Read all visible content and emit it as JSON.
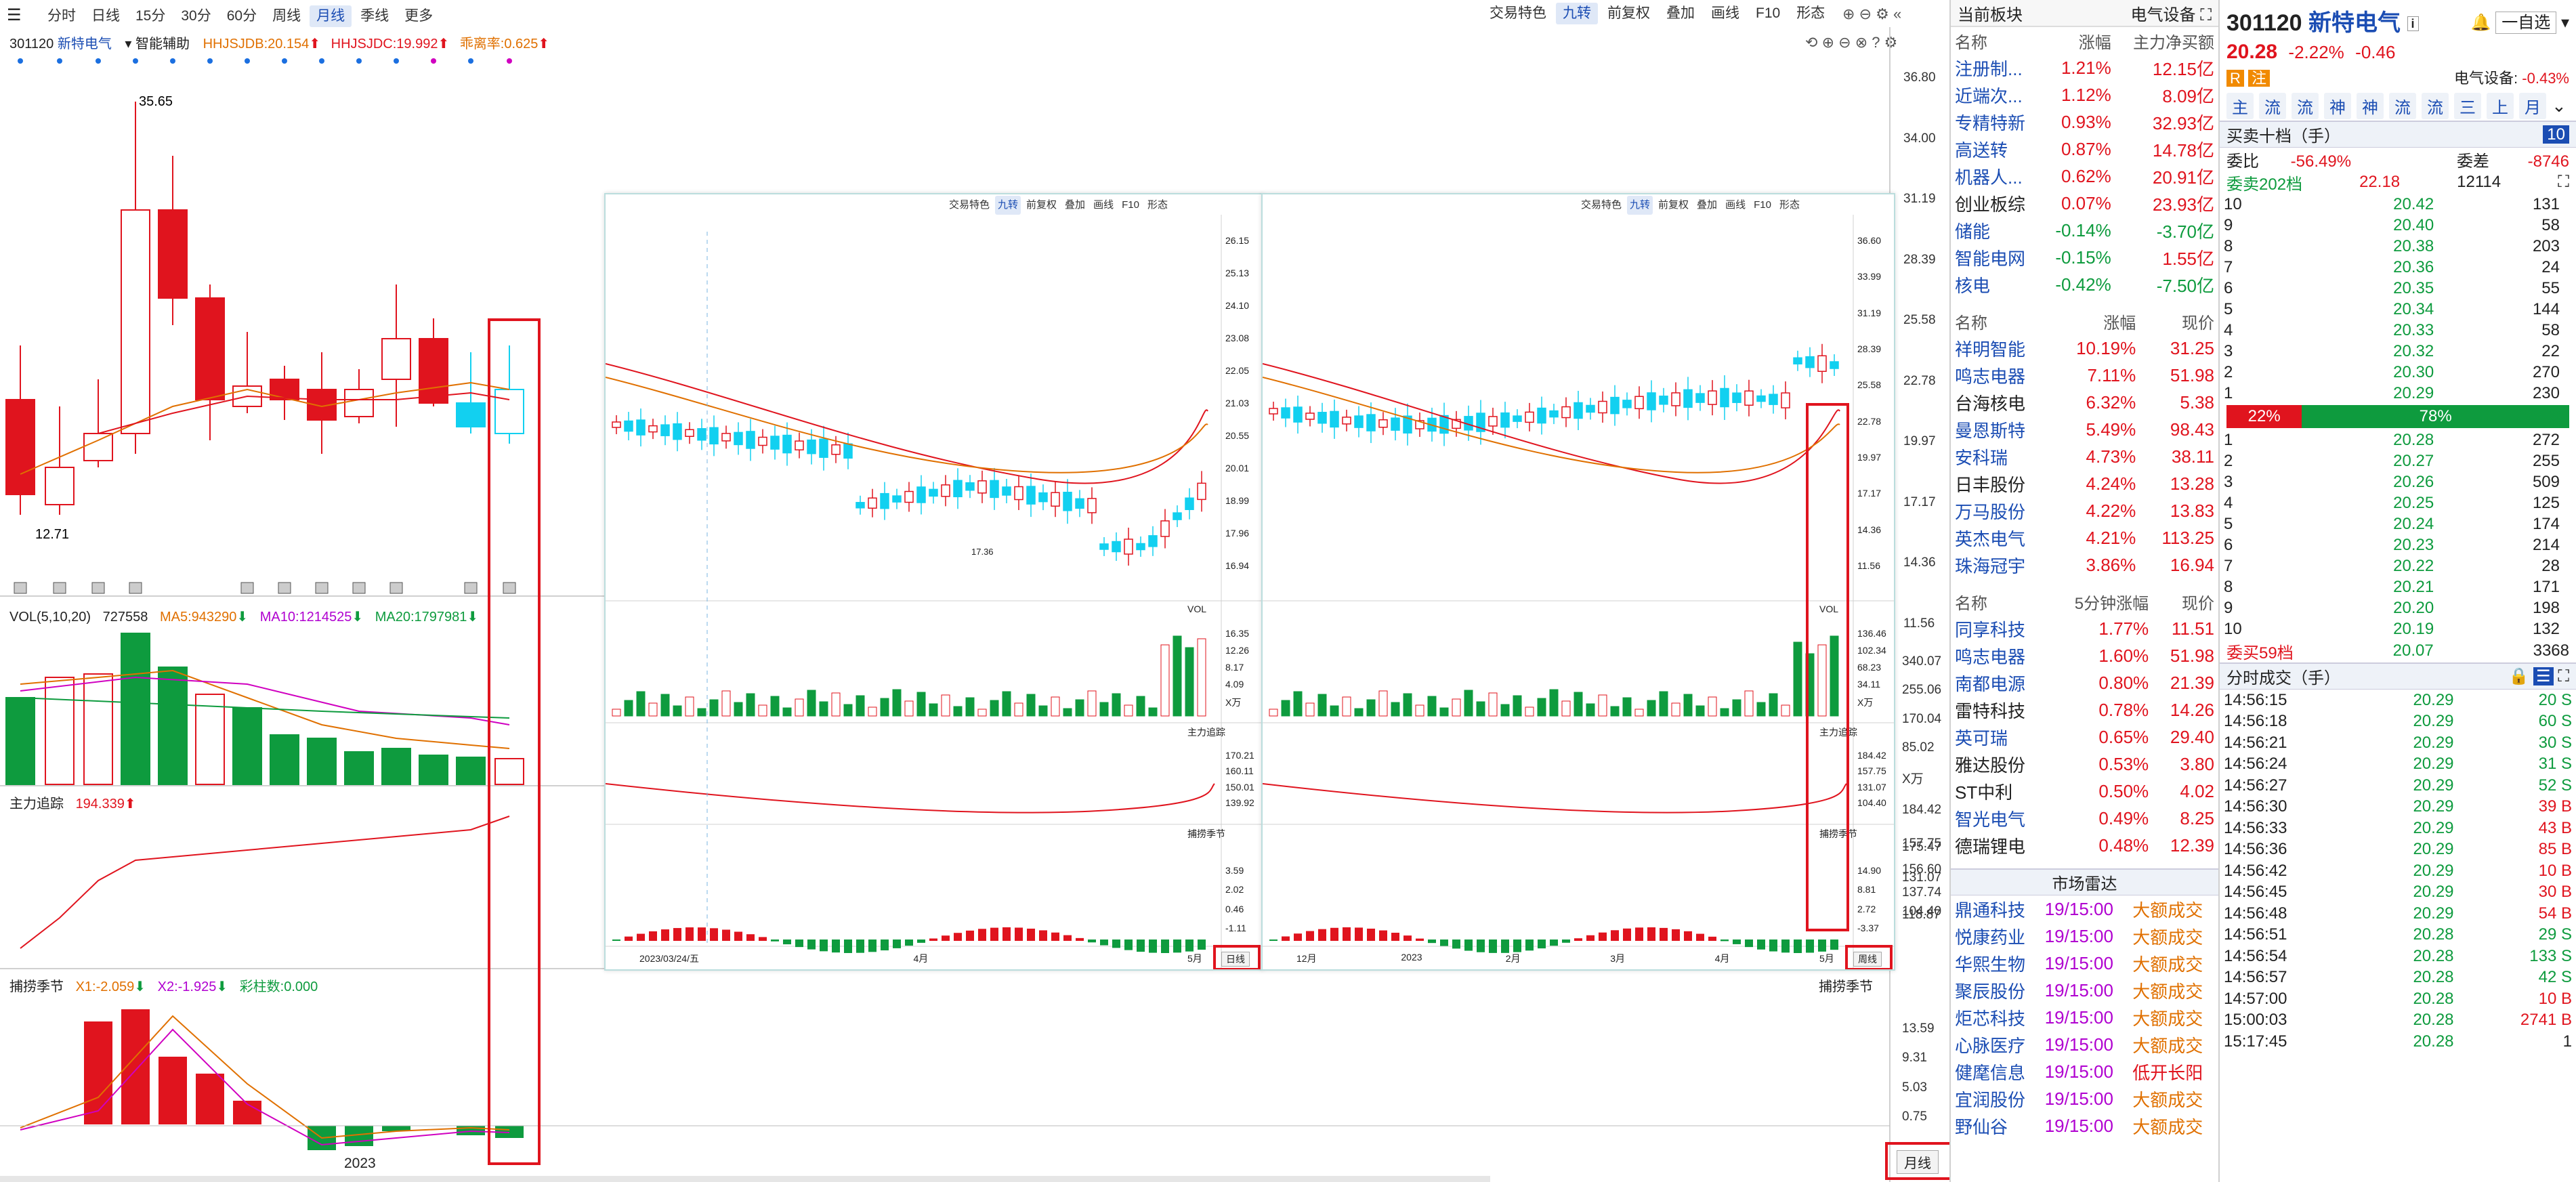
{
  "main": {
    "periods": [
      "分时",
      "日线",
      "15分",
      "30分",
      "60分",
      "周线",
      "月线",
      "季线",
      "更多"
    ],
    "active_period": "月线",
    "stock_code": "301120",
    "stock_name": "新特电气",
    "assist_label": "智能辅助",
    "indicator_hhj1": "HHJSJDB:20.154",
    "indicator_hhj2": "HHJSJDC:19.992",
    "indicator_rate": "乖离率:0.625",
    "right_toolbar": [
      "交易特色",
      "九转",
      "前复权",
      "叠加",
      "画线",
      "F10",
      "形态"
    ],
    "high_label": "35.65",
    "low_label": "12.71",
    "price_axis": [
      "36.80",
      "34.00",
      "31.19",
      "28.39",
      "25.58",
      "22.78",
      "19.97",
      "17.17",
      "14.36",
      "11.56"
    ],
    "vol_title": "VOL(5,10,20)",
    "vol_value": "727558",
    "vol_ma5": "MA5:943290",
    "vol_ma10": "MA10:1214525",
    "vol_ma20": "MA20:1797981",
    "vol_axis": [
      "340.07",
      "255.06",
      "170.04",
      "85.02",
      "X万"
    ],
    "zl_title": "主力追踪",
    "zl_value": "194.339",
    "zl_axis": [
      "184.42",
      "157.75",
      "131.07",
      "104.40"
    ],
    "bj_title": "捕捞季节",
    "bj_x1": "X1:-2.059",
    "bj_x2": "X2:-1.925",
    "bj_cz": "彩柱数:0.000",
    "bj_axis": [
      "13.59",
      "9.31",
      "5.03",
      "0.75"
    ],
    "x_label": "2023",
    "month_btn": "月线",
    "side_axis": [
      "175.47",
      "156.60",
      "137.74",
      "118.87"
    ],
    "side_title": "捕捞季节"
  },
  "overlay": {
    "left": {
      "toolbar": [
        "交易特色",
        "九转",
        "前复权",
        "叠加",
        "画线",
        "F10",
        "形态"
      ],
      "price_axis": [
        "26.15",
        "25.13",
        "24.10",
        "23.08",
        "22.05",
        "21.03",
        "20.55",
        "20.01",
        "18.99",
        "17.96",
        "16.94"
      ],
      "low_label": "17.36",
      "vol_axis": [
        "16.35",
        "12.26",
        "8.17",
        "4.09",
        "X万"
      ],
      "zl_axis": [
        "170.21",
        "160.11",
        "150.01",
        "139.92"
      ],
      "bj_axis": [
        "3.59",
        "2.02",
        "0.46",
        "-1.11"
      ],
      "x_labels": [
        "2023/03/24/五",
        "4月",
        "5月"
      ],
      "btn": "日线",
      "vol_title": "VOL",
      "zl_title": "主力追踪",
      "bj_title": "捕捞季节"
    },
    "right": {
      "toolbar": [
        "交易特色",
        "九转",
        "前复权",
        "叠加",
        "画线",
        "F10",
        "形态"
      ],
      "price_axis": [
        "36.60",
        "33.99",
        "31.19",
        "28.39",
        "25.58",
        "22.78",
        "19.97",
        "17.17",
        "14.36",
        "11.56"
      ],
      "vol_axis": [
        "136.46",
        "102.34",
        "68.23",
        "34.11",
        "X万"
      ],
      "zl_axis": [
        "184.42",
        "157.75",
        "131.07",
        "104.40"
      ],
      "bj_axis": [
        "14.90",
        "8.81",
        "2.72",
        "-3.37"
      ],
      "x_labels": [
        "12月",
        "2023",
        "2月",
        "3月",
        "4月",
        "5月"
      ],
      "btn": "周线",
      "vol_title": "VOL",
      "zl_title": "主力追踪",
      "bj_title": "捕捞季节"
    }
  },
  "sector": {
    "header_left": "当前板块",
    "header_right": "电气设备",
    "cols": [
      "名称",
      "涨幅",
      "主力净买额"
    ],
    "rows": [
      {
        "name": "注册制...",
        "chg": "1.21%",
        "amt": "12.15亿",
        "nc": "blue",
        "cc": "red",
        "ac": "red"
      },
      {
        "name": "近端次...",
        "chg": "1.12%",
        "amt": "8.09亿",
        "nc": "blue",
        "cc": "red",
        "ac": "red"
      },
      {
        "name": "专精特新",
        "chg": "0.93%",
        "amt": "32.93亿",
        "nc": "blue",
        "cc": "red",
        "ac": "red"
      },
      {
        "name": "高送转",
        "chg": "0.87%",
        "amt": "14.78亿",
        "nc": "blue",
        "cc": "red",
        "ac": "red"
      },
      {
        "name": "机器人...",
        "chg": "0.62%",
        "amt": "20.91亿",
        "nc": "blue",
        "cc": "red",
        "ac": "red"
      },
      {
        "name": "创业板综",
        "chg": "0.07%",
        "amt": "23.93亿",
        "nc": "black",
        "cc": "red",
        "ac": "red"
      },
      {
        "name": "储能",
        "chg": "-0.14%",
        "amt": "-3.70亿",
        "nc": "blue",
        "cc": "green",
        "ac": "green"
      },
      {
        "name": "智能电网",
        "chg": "-0.15%",
        "amt": "1.55亿",
        "nc": "blue",
        "cc": "green",
        "ac": "red"
      },
      {
        "name": "核电",
        "chg": "-0.42%",
        "amt": "-7.50亿",
        "nc": "blue",
        "cc": "green",
        "ac": "green"
      }
    ],
    "cols2": [
      "名称",
      "涨幅",
      "现价"
    ],
    "rows2": [
      {
        "name": "祥明智能",
        "chg": "10.19%",
        "px": "31.25",
        "nc": "blue"
      },
      {
        "name": "鸣志电器",
        "chg": "7.11%",
        "px": "51.98",
        "nc": "blue"
      },
      {
        "name": "台海核电",
        "chg": "6.32%",
        "px": "5.38",
        "nc": "black"
      },
      {
        "name": "曼恩斯特",
        "chg": "5.49%",
        "px": "98.43",
        "nc": "blue"
      },
      {
        "name": "安科瑞",
        "chg": "4.73%",
        "px": "38.11",
        "nc": "blue"
      },
      {
        "name": "日丰股份",
        "chg": "4.24%",
        "px": "13.28",
        "nc": "black"
      },
      {
        "name": "万马股份",
        "chg": "4.22%",
        "px": "13.83",
        "nc": "blue"
      },
      {
        "name": "英杰电气",
        "chg": "4.21%",
        "px": "113.25",
        "nc": "blue"
      },
      {
        "name": "珠海冠宇",
        "chg": "3.86%",
        "px": "16.94",
        "nc": "blue"
      }
    ],
    "cols3": [
      "名称",
      "5分钟涨幅",
      "现价"
    ],
    "rows3": [
      {
        "name": "同享科技",
        "chg": "1.77%",
        "px": "11.51",
        "nc": "blue"
      },
      {
        "name": "鸣志电器",
        "chg": "1.60%",
        "px": "51.98",
        "nc": "blue"
      },
      {
        "name": "南都电源",
        "chg": "0.80%",
        "px": "21.39",
        "nc": "blue"
      },
      {
        "name": "雷特科技",
        "chg": "0.78%",
        "px": "14.26",
        "nc": "black"
      },
      {
        "name": "英可瑞",
        "chg": "0.65%",
        "px": "29.40",
        "nc": "blue"
      },
      {
        "name": "雅达股份",
        "chg": "0.53%",
        "px": "3.80",
        "nc": "black"
      },
      {
        "name": "ST中利",
        "chg": "0.50%",
        "px": "4.02",
        "nc": "black"
      },
      {
        "name": "智光电气",
        "chg": "0.49%",
        "px": "8.25",
        "nc": "blue"
      },
      {
        "name": "德瑞锂电",
        "chg": "0.48%",
        "px": "12.39",
        "nc": "black"
      }
    ],
    "radar_title": "市场雷达",
    "radar": [
      {
        "name": "鼎通科技",
        "t": "19/15:00",
        "ev": "大额成交",
        "ec": "orange"
      },
      {
        "name": "悦康药业",
        "t": "19/15:00",
        "ev": "大额成交",
        "ec": "orange"
      },
      {
        "name": "华熙生物",
        "t": "19/15:00",
        "ev": "大额成交",
        "ec": "orange"
      },
      {
        "name": "聚辰股份",
        "t": "19/15:00",
        "ev": "大额成交",
        "ec": "orange"
      },
      {
        "name": "炬芯科技",
        "t": "19/15:00",
        "ev": "大额成交",
        "ec": "orange"
      },
      {
        "name": "心脉医疗",
        "t": "19/15:00",
        "ev": "大额成交",
        "ec": "orange"
      },
      {
        "name": "健麾信息",
        "t": "19/15:00",
        "ev": "低开长阳",
        "ec": "red"
      },
      {
        "name": "宜润股份",
        "t": "19/15:00",
        "ev": "大额成交",
        "ec": "orange"
      },
      {
        "name": "野仙谷",
        "t": "19/15:00",
        "ev": "大额成交",
        "ec": "orange"
      }
    ]
  },
  "quote": {
    "code": "301120",
    "name": "新特电气",
    "price": "20.28",
    "chg_pct": "-2.22%",
    "chg": "-0.46",
    "self_btn": "一自选",
    "tag_r": "R",
    "tag_zhu": "注",
    "industry": "电气设备:",
    "industry_chg": "-0.43%",
    "tabs": [
      "主",
      "流",
      "流",
      "神",
      "神",
      "流",
      "流",
      "三",
      "上",
      "月"
    ],
    "ob_title": "买卖十档（手）",
    "ob_count": "10",
    "wb_label": "委比",
    "wb_val": "-56.49%",
    "wc_label": "委差",
    "wc_val": "-8746",
    "wm_label": "委卖202档",
    "wm_px": "22.18",
    "wm_vol": "12114",
    "asks": [
      {
        "lv": "10",
        "px": "20.42",
        "vol": "131"
      },
      {
        "lv": "9",
        "px": "20.40",
        "vol": "58"
      },
      {
        "lv": "8",
        "px": "20.38",
        "vol": "203"
      },
      {
        "lv": "7",
        "px": "20.36",
        "vol": "24"
      },
      {
        "lv": "6",
        "px": "20.35",
        "vol": "55"
      },
      {
        "lv": "5",
        "px": "20.34",
        "vol": "144"
      },
      {
        "lv": "4",
        "px": "20.33",
        "vol": "58"
      },
      {
        "lv": "3",
        "px": "20.32",
        "vol": "22"
      },
      {
        "lv": "2",
        "px": "20.30",
        "vol": "270"
      },
      {
        "lv": "1",
        "px": "20.29",
        "vol": "230"
      }
    ],
    "ratio_sell": "22%",
    "ratio_buy": "78%",
    "ratio_sell_frac": 0.22,
    "bids": [
      {
        "lv": "1",
        "px": "20.28",
        "vol": "272"
      },
      {
        "lv": "2",
        "px": "20.27",
        "vol": "255"
      },
      {
        "lv": "3",
        "px": "20.26",
        "vol": "509"
      },
      {
        "lv": "4",
        "px": "20.25",
        "vol": "125"
      },
      {
        "lv": "5",
        "px": "20.24",
        "vol": "174"
      },
      {
        "lv": "6",
        "px": "20.23",
        "vol": "214"
      },
      {
        "lv": "7",
        "px": "20.22",
        "vol": "28"
      },
      {
        "lv": "8",
        "px": "20.21",
        "vol": "171"
      },
      {
        "lv": "9",
        "px": "20.20",
        "vol": "198"
      },
      {
        "lv": "10",
        "px": "20.19",
        "vol": "132"
      }
    ],
    "wmb_label": "委买59档",
    "wmb_px": "20.07",
    "wmb_vol": "3368",
    "tick_title": "分时成交（手）",
    "ticks": [
      {
        "t": "14:56:15",
        "px": "20.29",
        "vol": "20 S",
        "vc": "green"
      },
      {
        "t": "14:56:18",
        "px": "20.29",
        "vol": "60 S",
        "vc": "green"
      },
      {
        "t": "14:56:21",
        "px": "20.29",
        "vol": "30 S",
        "vc": "green"
      },
      {
        "t": "14:56:24",
        "px": "20.29",
        "vol": "31 S",
        "vc": "green"
      },
      {
        "t": "14:56:27",
        "px": "20.29",
        "vol": "52 S",
        "vc": "green"
      },
      {
        "t": "14:56:30",
        "px": "20.29",
        "vol": "39 B",
        "vc": "red"
      },
      {
        "t": "14:56:33",
        "px": "20.29",
        "vol": "43 B",
        "vc": "red"
      },
      {
        "t": "14:56:36",
        "px": "20.29",
        "vol": "85 B",
        "vc": "red"
      },
      {
        "t": "14:56:42",
        "px": "20.29",
        "vol": "10 B",
        "vc": "red"
      },
      {
        "t": "14:56:45",
        "px": "20.29",
        "vol": "30 B",
        "vc": "red"
      },
      {
        "t": "14:56:48",
        "px": "20.29",
        "vol": "54 B",
        "vc": "red"
      },
      {
        "t": "14:56:51",
        "px": "20.28",
        "vol": "29 S",
        "vc": "green"
      },
      {
        "t": "14:56:54",
        "px": "20.28",
        "vol": "133 S",
        "vc": "green"
      },
      {
        "t": "14:56:57",
        "px": "20.28",
        "vol": "42 S",
        "vc": "green"
      },
      {
        "t": "14:57:00",
        "px": "20.28",
        "vol": "10 B",
        "vc": "red"
      },
      {
        "t": "15:00:03",
        "px": "20.28",
        "vol": "2741 B",
        "vc": "red"
      },
      {
        "t": "15:17:45",
        "px": "20.28",
        "vol": "1",
        "vc": "black"
      }
    ]
  }
}
